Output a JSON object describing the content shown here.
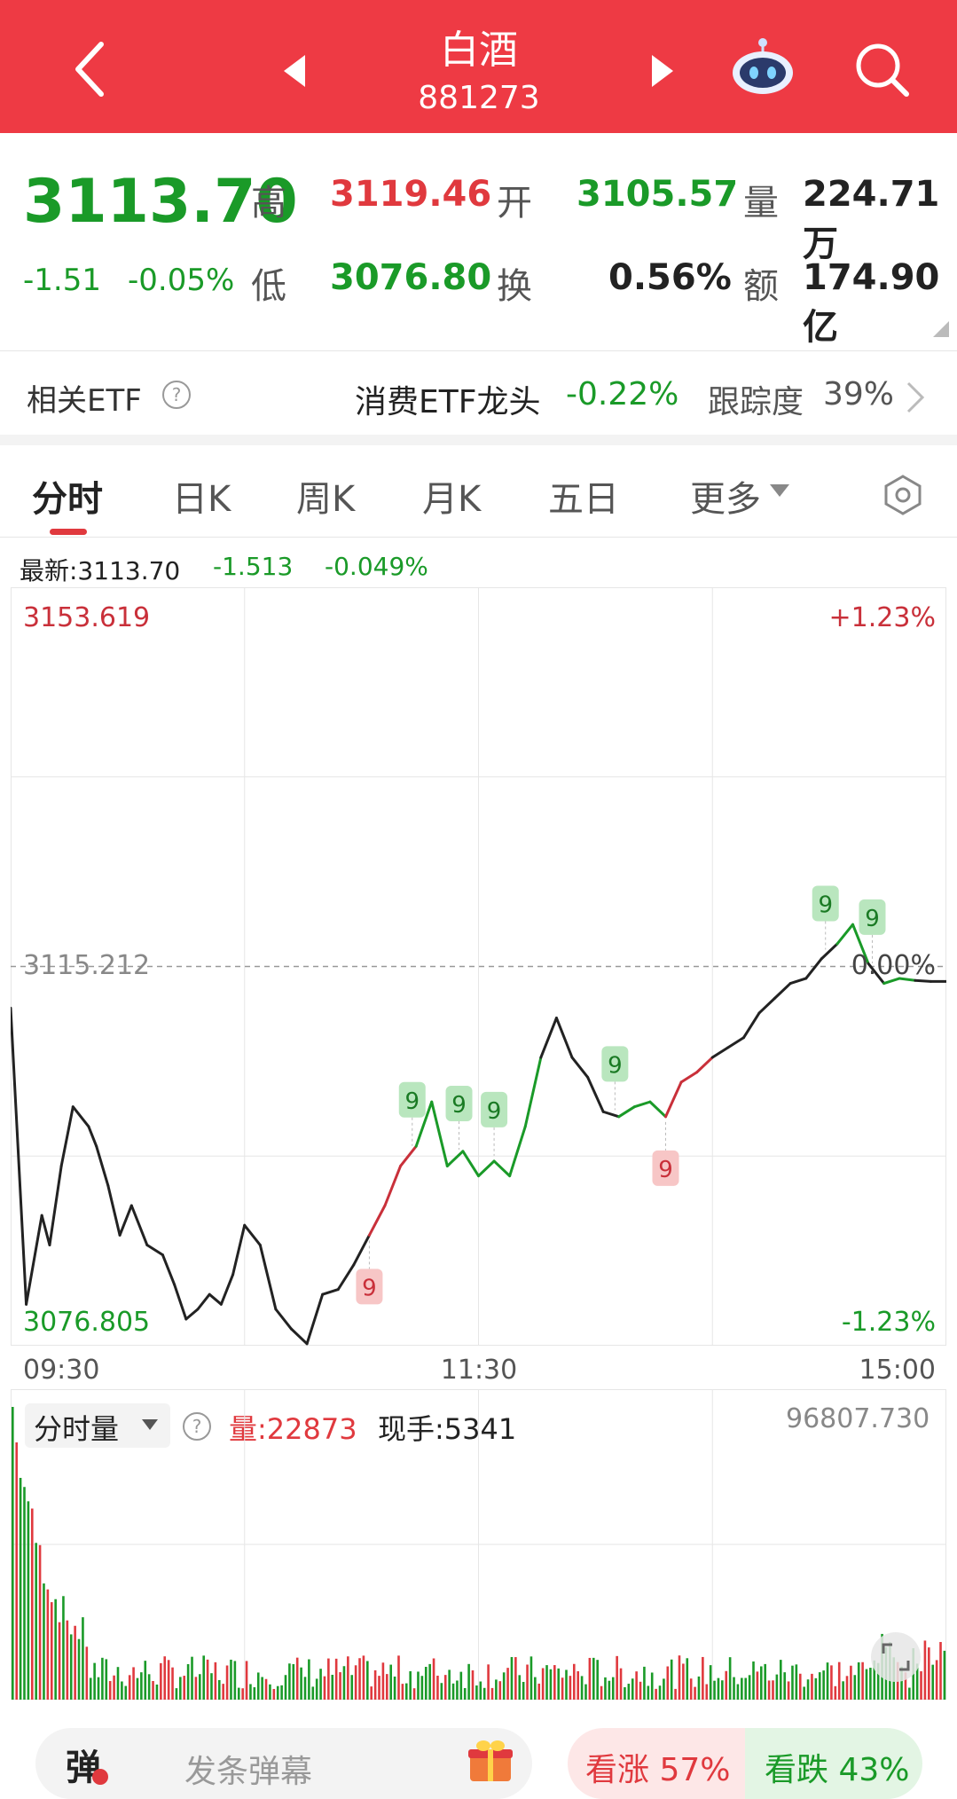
{
  "header": {
    "title": "白酒",
    "code": "881273",
    "icons": [
      "back-arrow-icon",
      "prev-stock-icon",
      "next-stock-icon",
      "robot-assistant-icon",
      "search-icon"
    ]
  },
  "quote": {
    "price": "3113.70",
    "change": "-1.51",
    "change_pct": "-0.05%",
    "high_label": "高",
    "high": "3119.46",
    "open_label": "开",
    "open": "3105.57",
    "vol_label": "量",
    "vol": "224.71万",
    "low_label": "低",
    "low": "3076.80",
    "turnover_label": "换",
    "turnover": "0.56%",
    "amount_label": "额",
    "amount": "174.90亿"
  },
  "etf": {
    "label": "相关ETF",
    "name": "消费ETF龙头",
    "pct": "-0.22%",
    "track_label": "跟踪度",
    "track_value": "39%"
  },
  "tabs": [
    "分时",
    "日K",
    "周K",
    "月K",
    "五日",
    "更多"
  ],
  "chart_info": {
    "latest_label": "最新:3113.70",
    "latest_change": "-1.513",
    "latest_pct": "-0.049%"
  },
  "chart_data": {
    "type": "line",
    "y_max_label": "3153.619",
    "y_max_pct": "+1.23%",
    "y_mid_label": "3115.212",
    "y_mid_pct": "0.00%",
    "y_min_label": "3076.805",
    "y_min_pct": "-1.23%",
    "ylim": [
      3076.805,
      3153.619
    ],
    "x_ticks": [
      "09:30",
      "11:30",
      "15:00"
    ],
    "x": [
      0,
      4,
      8,
      10,
      13,
      16,
      20,
      22,
      25,
      28,
      31,
      35,
      39,
      42,
      45,
      48,
      51,
      54,
      57,
      60,
      64,
      68,
      72,
      76,
      80,
      84,
      88,
      92,
      96,
      100,
      104,
      108,
      112,
      116,
      120,
      124,
      128,
      132,
      136,
      140,
      144,
      148,
      152,
      156,
      160,
      164,
      168,
      172,
      176,
      180,
      184,
      188,
      192,
      196,
      200,
      204,
      208,
      212,
      216,
      220,
      224,
      228,
      232,
      236,
      240
    ],
    "values": [
      3111.0,
      3081.0,
      3090.0,
      3087.0,
      3095.0,
      3101.0,
      3099.0,
      3097.0,
      3093.0,
      3088.0,
      3091.0,
      3087.0,
      3086.0,
      3083.0,
      3079.5,
      3080.5,
      3082.0,
      3081.0,
      3084.0,
      3089.0,
      3087.0,
      3080.5,
      3078.5,
      3077.0,
      3082.0,
      3082.5,
      3085.0,
      3088.0,
      3091.0,
      3095.0,
      3097.0,
      3101.5,
      3095.0,
      3096.5,
      3094.0,
      3095.5,
      3094.0,
      3099.0,
      3106.0,
      3110.0,
      3106.0,
      3104.0,
      3100.5,
      3100.0,
      3101.0,
      3101.5,
      3100.0,
      3103.5,
      3104.5,
      3106.0,
      3107.0,
      3108.0,
      3110.5,
      3112.0,
      3113.5,
      3114.0,
      3116.0,
      3117.5,
      3119.46,
      3115.5,
      3113.5,
      3114.0,
      3113.8,
      3113.7,
      3113.7
    ],
    "signals": [
      {
        "x": 92,
        "label": "9",
        "type": "sell"
      },
      {
        "x": 103,
        "label": "9",
        "type": "buy"
      },
      {
        "x": 115,
        "label": "9",
        "type": "buy"
      },
      {
        "x": 124,
        "label": "9",
        "type": "buy"
      },
      {
        "x": 155,
        "label": "9",
        "type": "buy"
      },
      {
        "x": 168,
        "label": "9",
        "type": "sell"
      },
      {
        "x": 209,
        "label": "9",
        "type": "buy"
      },
      {
        "x": 221,
        "label": "9",
        "type": "buy"
      }
    ]
  },
  "volume": {
    "label": "分时量",
    "vol_label": "量:22873",
    "hand_label": "现手:5341",
    "max_label": "96807.730"
  },
  "bottom": {
    "danmu_label": "弹",
    "danmu_placeholder": "发条弹幕",
    "bull_label": "看涨 57%",
    "bear_label": "看跌 43%"
  }
}
